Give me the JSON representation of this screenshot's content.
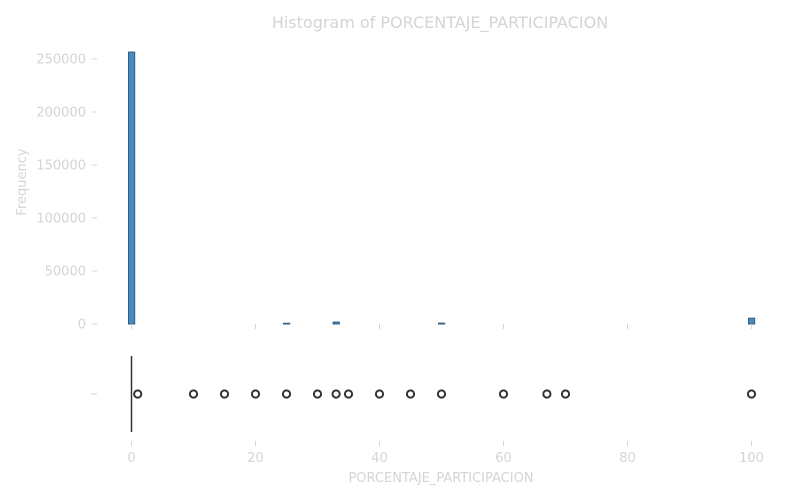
{
  "chart_data": {
    "type": "histogram+boxplot",
    "title": "Histogram of PORCENTAJE_PARTICIPACION",
    "xlabel": "PORCENTAJE_PARTICIPACION",
    "ylabel": "Frequency",
    "xlim": [
      -2,
      102
    ],
    "ylim": [
      0,
      270000
    ],
    "x_ticks": [
      0,
      20,
      40,
      60,
      80,
      100
    ],
    "y_ticks": [
      0,
      50000,
      100000,
      150000,
      200000,
      250000
    ],
    "grid": false,
    "bar_color": "#4a8bbd",
    "bar_edge_color": "#2f5f86",
    "box_color": "#333333",
    "histogram": {
      "bins": [
        {
          "x0": 0,
          "x1": 1,
          "count": 256500
        },
        {
          "x0": 25,
          "x1": 26,
          "count": 700
        },
        {
          "x0": 33,
          "x1": 34,
          "count": 1800
        },
        {
          "x0": 50,
          "x1": 51,
          "count": 800
        },
        {
          "x0": 100,
          "x1": 101,
          "count": 5500
        }
      ]
    },
    "boxplot": {
      "min": 0,
      "q1": 0,
      "median": 0,
      "q3": 0,
      "max": 0,
      "outliers": [
        1,
        10,
        15,
        20,
        25,
        30,
        33,
        35,
        40,
        45,
        50,
        60,
        67,
        70,
        100
      ]
    }
  }
}
